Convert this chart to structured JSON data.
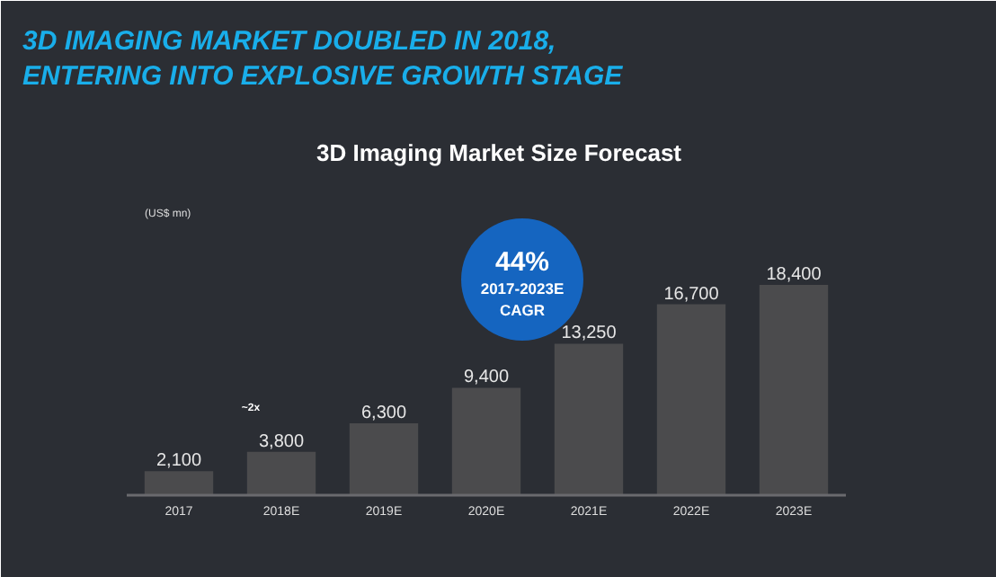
{
  "chart_data": {
    "type": "bar",
    "title": "3D IMAGING MARKET DOUBLED IN 2018,\nENTERING INTO EXPLOSIVE GROWTH STAGE",
    "subtitle": "3D Imaging Market Size Forecast",
    "categories": [
      "2017",
      "2018E",
      "2019E",
      "2020E",
      "2021E",
      "2022E",
      "2023E"
    ],
    "values": [
      2100,
      3800,
      6300,
      9400,
      13250,
      16700,
      18400
    ],
    "value_labels": [
      "2,100",
      "3,800",
      "6,300",
      "9,400",
      "13,250",
      "16,700",
      "18,400"
    ],
    "color": "#4b4b4d",
    "annotations": [
      "(US$ mn)",
      "~2x",
      "44%",
      "2017-2023E",
      "CAGR"
    ],
    "grid": false
  }
}
